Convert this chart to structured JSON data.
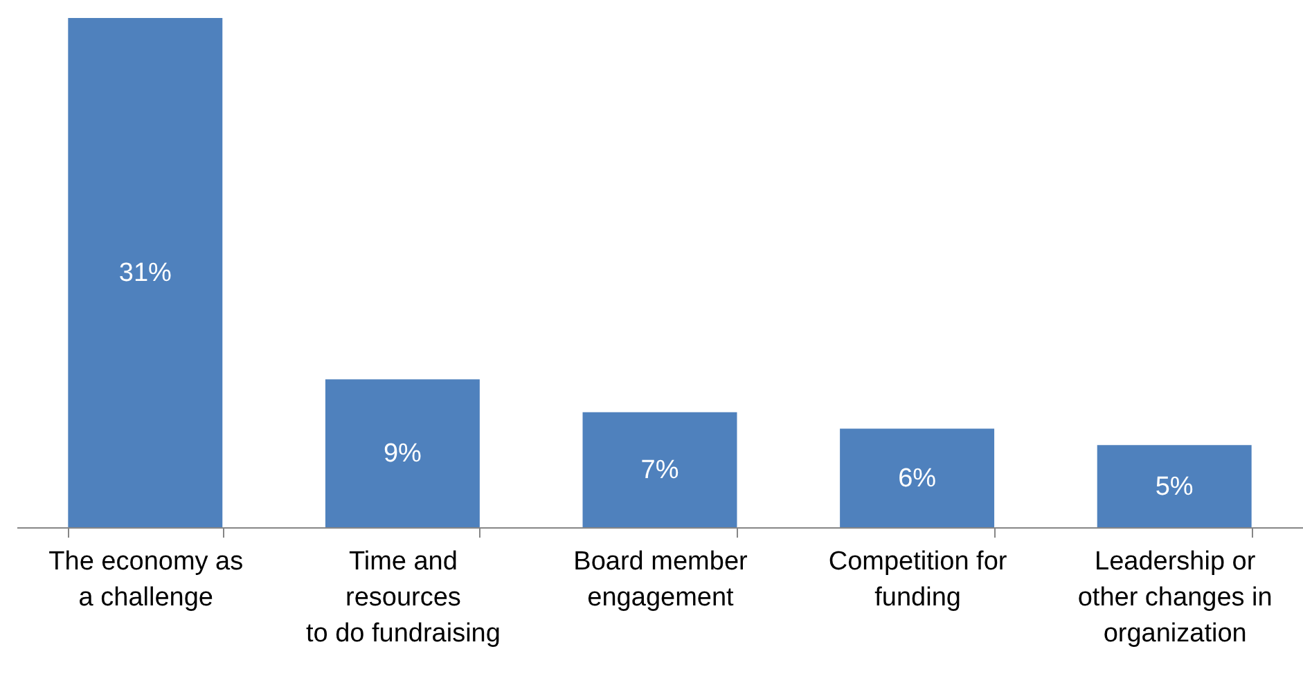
{
  "chart_data": {
    "type": "bar",
    "categories": [
      "The economy as\na challenge",
      "Time and\nresources\nto do fundraising",
      "Board member\nengagement",
      "Competition for\nfunding",
      "Leadership or\nother changes in\norganization"
    ],
    "values": [
      31,
      9,
      7,
      6,
      5
    ],
    "value_labels": [
      "31%",
      "9%",
      "7%",
      "6%",
      "5%"
    ],
    "color": "#4f81bd"
  }
}
